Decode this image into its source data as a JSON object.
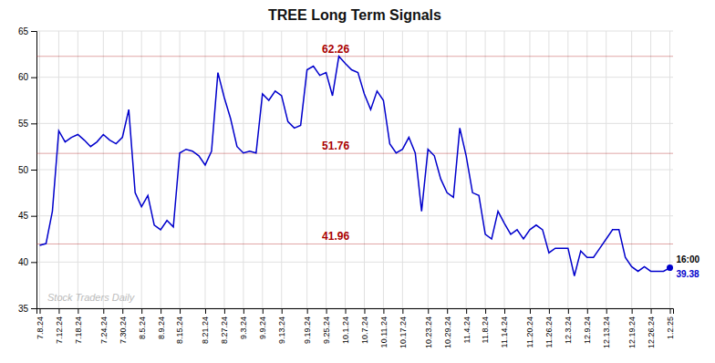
{
  "chart_data": {
    "type": "line",
    "title": "TREE Long Term Signals",
    "color": "#0000cc",
    "categories": [
      "7.8.24",
      null,
      null,
      "7.12.24",
      null,
      null,
      "7.18.24",
      null,
      null,
      null,
      "7.24.24",
      null,
      null,
      "7.30.24",
      null,
      null,
      "8.5.24",
      null,
      null,
      "8.9.24",
      null,
      null,
      "8.15.24",
      null,
      null,
      null,
      "8.21.24",
      null,
      null,
      "8.27.24",
      null,
      null,
      "9.3.24",
      null,
      null,
      "9.9.24",
      null,
      null,
      "9.13.24",
      null,
      null,
      null,
      "9.19.24",
      null,
      null,
      "9.25.24",
      null,
      null,
      "10.1.24",
      null,
      null,
      "10.7.24",
      null,
      null,
      "10.11.24",
      null,
      null,
      "10.17.24",
      null,
      null,
      null,
      "10.23.24",
      null,
      null,
      "10.29.24",
      null,
      null,
      "11.4.24",
      null,
      null,
      "11.8.24",
      null,
      null,
      "11.14.24",
      null,
      null,
      null,
      "11.20.24",
      null,
      null,
      "11.26.24",
      null,
      null,
      "12.3.24",
      null,
      null,
      "12.9.24",
      null,
      null,
      "12.13.24",
      null,
      null,
      null,
      "12.19.24",
      null,
      null,
      "12.26.24",
      null,
      null,
      "1.2.25"
    ],
    "values": [
      41.8,
      42.0,
      45.5,
      54.2,
      53.0,
      53.5,
      53.8,
      53.2,
      52.5,
      53.0,
      53.8,
      53.2,
      52.8,
      53.5,
      56.5,
      47.5,
      46.0,
      47.2,
      44.0,
      43.5,
      44.5,
      43.8,
      51.8,
      52.2,
      52.0,
      51.5,
      50.5,
      52.0,
      60.5,
      57.8,
      55.5,
      52.5,
      51.8,
      52.0,
      51.8,
      58.2,
      57.5,
      58.5,
      58.0,
      55.2,
      54.5,
      54.8,
      60.8,
      61.2,
      60.2,
      60.5,
      58.0,
      62.26,
      61.5,
      60.8,
      60.5,
      58.2,
      56.5,
      58.5,
      57.5,
      52.8,
      51.8,
      52.2,
      53.5,
      51.8,
      45.5,
      52.2,
      51.5,
      49.0,
      47.5,
      47.0,
      54.5,
      51.5,
      47.5,
      47.2,
      43.0,
      42.5,
      45.5,
      44.2,
      43.0,
      43.5,
      42.5,
      43.5,
      44.0,
      43.5,
      41.0,
      41.5,
      41.5,
      41.5,
      38.5,
      41.2,
      40.5,
      40.5,
      41.5,
      42.5,
      43.5,
      43.5,
      40.5,
      39.5,
      39.0,
      39.5,
      39.0,
      39.0,
      39.0,
      39.38
    ],
    "ylim": [
      35,
      65
    ],
    "yticks": [
      35,
      40,
      45,
      50,
      55,
      60,
      65
    ],
    "grid": true,
    "reference_lines": [
      {
        "value": 62.26,
        "label": "62.26",
        "color": "#aa0000"
      },
      {
        "value": 51.76,
        "label": "51.76",
        "color": "#aa0000"
      },
      {
        "value": 41.96,
        "label": "41.96",
        "color": "#aa0000"
      }
    ],
    "annotations": [
      {
        "text": "Stock Traders Daily",
        "color": "#bbbbbb"
      },
      {
        "text": "16:00",
        "color": "#000000"
      },
      {
        "text": "39.38",
        "value": 39.38,
        "color": "#0000cc"
      }
    ]
  }
}
